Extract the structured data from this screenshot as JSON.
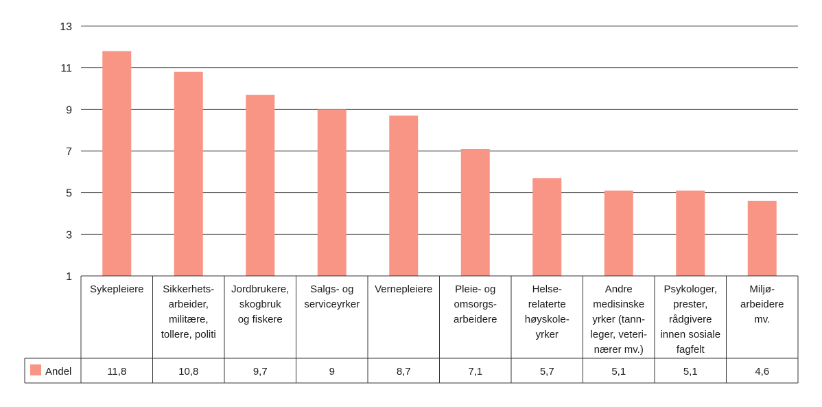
{
  "chart_data": {
    "type": "bar",
    "categories": [
      [
        "Sykepleiere"
      ],
      [
        "Sikkerhets-",
        "arbeider,",
        "militære,",
        "tollere, politi"
      ],
      [
        "Jordbrukere,",
        "skogbruk",
        "og fiskere"
      ],
      [
        "Salgs- og",
        "serviceyrker"
      ],
      [
        "Vernepleiere"
      ],
      [
        "Pleie- og",
        "omsorgs-",
        "arbeidere"
      ],
      [
        "Helse-",
        "relaterte",
        "høyskole-",
        "yrker"
      ],
      [
        "Andre",
        "medisinske",
        "yrker (tann-",
        "leger, veteri-",
        "nærer mv.)"
      ],
      [
        "Psykologer,",
        "prester,",
        "rådgivere",
        "innen sosiale",
        "fagfelt"
      ],
      [
        "Miljø-",
        "arbeidere",
        "mv."
      ]
    ],
    "series": [
      {
        "name": "Andel",
        "values": [
          11.8,
          10.8,
          9.7,
          9,
          8.7,
          7.1,
          5.7,
          5.1,
          5.1,
          4.6
        ],
        "display_values": [
          "11,8",
          "10,8",
          "9,7",
          "9",
          "8,7",
          "7,1",
          "5,7",
          "5,1",
          "5,1",
          "4,6"
        ],
        "color": "#f99585"
      }
    ],
    "yticks": [
      "1",
      "3",
      "5",
      "7",
      "9",
      "11",
      "13"
    ],
    "ylim": [
      1,
      13
    ],
    "grid": true,
    "legend": "data-table-left",
    "colors": {
      "bar": "#f99585",
      "grid": "#555555",
      "axis": "#333333",
      "text": "#1a1a1a"
    }
  }
}
